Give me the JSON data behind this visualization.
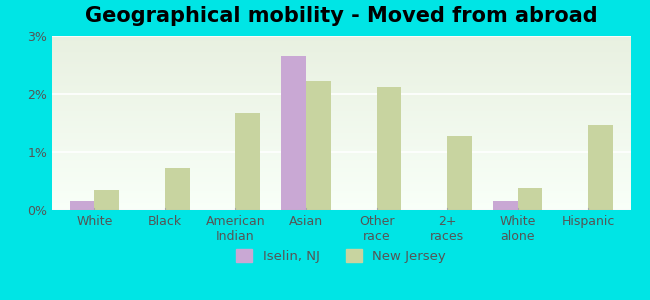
{
  "title": "Geographical mobility - Moved from abroad",
  "categories": [
    "White",
    "Black",
    "American\nIndian",
    "Asian",
    "Other\nrace",
    "2+\nraces",
    "White\nalone",
    "Hispanic"
  ],
  "iselin_values": [
    0.15,
    0.0,
    0.0,
    2.65,
    0.0,
    0.0,
    0.15,
    0.0
  ],
  "nj_values": [
    0.35,
    0.72,
    1.68,
    2.22,
    2.12,
    1.27,
    0.38,
    1.47
  ],
  "iselin_color": "#c9a8d4",
  "nj_color": "#c8d4a0",
  "bg_color": "#00e5e5",
  "plot_bg_top": "#e8f0e0",
  "plot_bg_bottom": "#f8fff8",
  "ylim": [
    0,
    3.0
  ],
  "yticks": [
    0,
    1,
    2,
    3
  ],
  "ytick_labels": [
    "0%",
    "1%",
    "2%",
    "3%"
  ],
  "bar_width": 0.35,
  "legend_labels": [
    "Iselin, NJ",
    "New Jersey"
  ],
  "title_fontsize": 15,
  "tick_fontsize": 9
}
